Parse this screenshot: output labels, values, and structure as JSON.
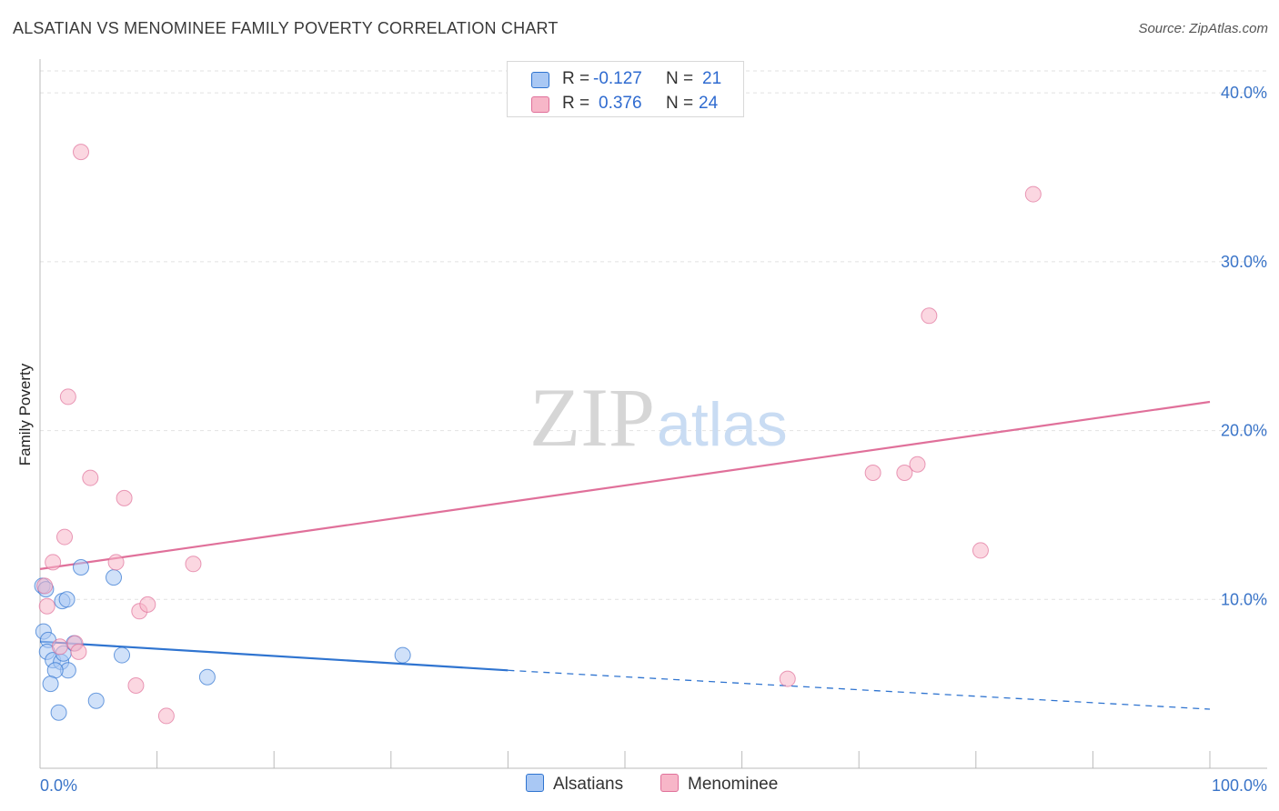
{
  "title": "ALSATIAN VS MENOMINEE FAMILY POVERTY CORRELATION CHART",
  "source": "Source: ZipAtlas.com",
  "watermark": {
    "zip": "ZIP",
    "atlas": "atlas"
  },
  "legend": {
    "rows": [
      {
        "r_label": "R =",
        "r_value": "-0.127",
        "n_label": "N =",
        "n_value": "21",
        "color": "#a9c8f4"
      },
      {
        "r_label": "R =",
        "r_value": "0.376",
        "n_label": "N =",
        "n_value": "24",
        "color": "#f7b6c8"
      }
    ]
  },
  "bottom_legend": {
    "alsatians": "Alsatians",
    "menominee": "Menominee"
  },
  "chart_data": {
    "type": "scatter",
    "title": "ALSATIAN VS MENOMINEE FAMILY POVERTY CORRELATION CHART",
    "xlabel": "",
    "ylabel": "Family Poverty",
    "xlim": [
      0,
      100
    ],
    "ylim": [
      0,
      42
    ],
    "x_tick_labels": [
      "0.0%",
      "100.0%"
    ],
    "y_ticks": [
      10,
      20,
      30,
      40
    ],
    "y_tick_labels": [
      "10.0%",
      "20.0%",
      "30.0%",
      "40.0%"
    ],
    "grid": true,
    "series": [
      {
        "name": "Alsatians",
        "color": "#2f74d0",
        "fill": "#a9c8f4",
        "r": -0.127,
        "n": 21,
        "points": [
          [
            0.2,
            10.8
          ],
          [
            0.5,
            10.6
          ],
          [
            0.3,
            8.1
          ],
          [
            0.7,
            7.6
          ],
          [
            0.6,
            6.9
          ],
          [
            1.1,
            6.4
          ],
          [
            1.8,
            6.3
          ],
          [
            2.0,
            6.8
          ],
          [
            2.4,
            5.8
          ],
          [
            1.3,
            5.8
          ],
          [
            0.9,
            5.0
          ],
          [
            1.6,
            3.3
          ],
          [
            1.9,
            9.9
          ],
          [
            2.3,
            10.0
          ],
          [
            3.5,
            11.9
          ],
          [
            2.9,
            7.4
          ],
          [
            4.8,
            4.0
          ],
          [
            6.3,
            11.3
          ],
          [
            7.0,
            6.7
          ],
          [
            14.3,
            5.4
          ],
          [
            31.0,
            6.7
          ]
        ],
        "trend": {
          "x0": 0,
          "y0": 7.5,
          "x1": 40,
          "y1": 5.8,
          "x_dash_end": 100,
          "y_dash_end": 3.5
        }
      },
      {
        "name": "Menominee",
        "color": "#e0709a",
        "fill": "#f7b6c8",
        "r": 0.376,
        "n": 24,
        "points": [
          [
            0.4,
            10.8
          ],
          [
            0.6,
            9.6
          ],
          [
            1.1,
            12.2
          ],
          [
            1.7,
            7.2
          ],
          [
            2.1,
            13.7
          ],
          [
            2.4,
            22.0
          ],
          [
            3.0,
            7.4
          ],
          [
            3.3,
            6.9
          ],
          [
            3.5,
            36.5
          ],
          [
            4.3,
            17.2
          ],
          [
            6.5,
            12.2
          ],
          [
            7.2,
            16.0
          ],
          [
            8.2,
            4.9
          ],
          [
            8.5,
            9.3
          ],
          [
            9.2,
            9.7
          ],
          [
            10.8,
            3.1
          ],
          [
            13.1,
            12.1
          ],
          [
            63.9,
            5.3
          ],
          [
            71.2,
            17.5
          ],
          [
            73.9,
            17.5
          ],
          [
            75.0,
            18.0
          ],
          [
            76.0,
            26.8
          ],
          [
            80.4,
            12.9
          ],
          [
            84.9,
            34.0
          ]
        ],
        "trend": {
          "x0": 0,
          "y0": 11.8,
          "x1": 100,
          "y1": 21.7
        }
      }
    ]
  }
}
